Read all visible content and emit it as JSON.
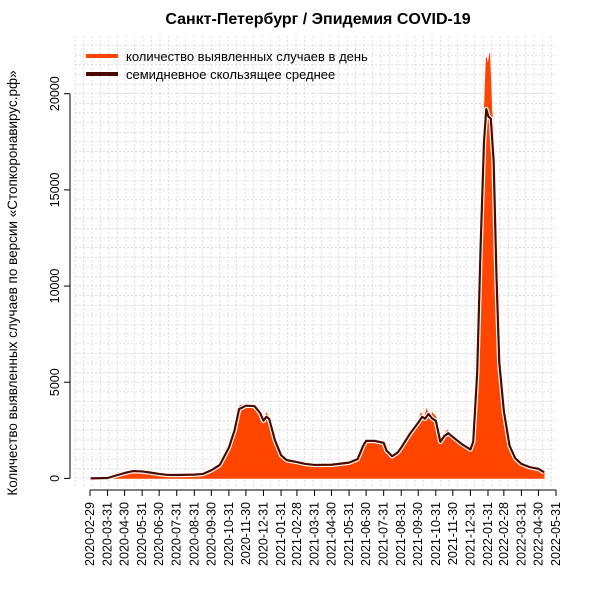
{
  "chart_data": {
    "type": "area",
    "title": "Санкт-Петербург / Эпидемия COVID-19",
    "xlabel": "",
    "ylabel": "Количество выявленных случаев по версии «Стопкоронавирус.рф»",
    "x_range": [
      "2020-02-29",
      "2022-05-31"
    ],
    "ylim": [
      -500,
      23000
    ],
    "y_ticks": [
      0,
      5000,
      10000,
      15000,
      20000
    ],
    "y_tick_labels": [
      "0",
      "5000",
      "10000",
      "15000",
      "20000"
    ],
    "x_ticks": [
      "2020-02-29",
      "2020-03-31",
      "2020-04-30",
      "2020-05-31",
      "2020-06-30",
      "2020-07-31",
      "2020-08-31",
      "2020-09-30",
      "2020-10-31",
      "2020-11-30",
      "2020-12-31",
      "2021-01-31",
      "2021-02-28",
      "2021-03-31",
      "2021-04-30",
      "2021-05-31",
      "2021-06-30",
      "2021-07-31",
      "2021-08-31",
      "2021-09-30",
      "2021-10-31",
      "2021-11-30",
      "2021-12-31",
      "2022-01-31",
      "2022-02-28",
      "2022-03-31",
      "2022-04-30",
      "2022-05-31"
    ],
    "grid": true,
    "legend_position": "top-left",
    "colors": {
      "daily": "#ff4500",
      "average": "#4a0a00",
      "grid": "#c8c8c8"
    },
    "series": [
      {
        "name": "количество выявленных случаев в день",
        "kind": "area",
        "points": [
          [
            "2020-03-01",
            0
          ],
          [
            "2020-03-15",
            5
          ],
          [
            "2020-03-31",
            30
          ],
          [
            "2020-04-10",
            200
          ],
          [
            "2020-04-20",
            300
          ],
          [
            "2020-04-30",
            330
          ],
          [
            "2020-05-10",
            450
          ],
          [
            "2020-05-20",
            420
          ],
          [
            "2020-05-31",
            380
          ],
          [
            "2020-06-10",
            330
          ],
          [
            "2020-06-20",
            300
          ],
          [
            "2020-06-30",
            220
          ],
          [
            "2020-07-10",
            180
          ],
          [
            "2020-07-20",
            170
          ],
          [
            "2020-07-31",
            180
          ],
          [
            "2020-08-15",
            190
          ],
          [
            "2020-08-31",
            200
          ],
          [
            "2020-09-15",
            240
          ],
          [
            "2020-09-30",
            450
          ],
          [
            "2020-10-10",
            650
          ],
          [
            "2020-10-20",
            900
          ],
          [
            "2020-10-31",
            1700
          ],
          [
            "2020-11-10",
            2700
          ],
          [
            "2020-11-15",
            3600
          ],
          [
            "2020-11-20",
            3800
          ],
          [
            "2020-11-30",
            3820
          ],
          [
            "2020-12-10",
            3800
          ],
          [
            "2020-12-20",
            3750
          ],
          [
            "2020-12-25",
            3000
          ],
          [
            "2020-12-31",
            2800
          ],
          [
            "2021-01-05",
            3400
          ],
          [
            "2021-01-10",
            3200
          ],
          [
            "2021-01-15",
            2400
          ],
          [
            "2021-01-25",
            1500
          ],
          [
            "2021-01-31",
            1100
          ],
          [
            "2021-02-10",
            950
          ],
          [
            "2021-02-20",
            900
          ],
          [
            "2021-02-28",
            850
          ],
          [
            "2021-03-15",
            760
          ],
          [
            "2021-03-31",
            700
          ],
          [
            "2021-04-15",
            690
          ],
          [
            "2021-04-30",
            720
          ],
          [
            "2021-05-15",
            760
          ],
          [
            "2021-05-31",
            830
          ],
          [
            "2021-06-10",
            850
          ],
          [
            "2021-06-20",
            1200
          ],
          [
            "2021-06-25",
            1800
          ],
          [
            "2021-06-30",
            2050
          ],
          [
            "2021-07-10",
            2000
          ],
          [
            "2021-07-20",
            1950
          ],
          [
            "2021-07-31",
            1850
          ],
          [
            "2021-08-05",
            1500
          ],
          [
            "2021-08-15",
            1200
          ],
          [
            "2021-08-25",
            1450
          ],
          [
            "2021-08-31",
            1700
          ],
          [
            "2021-09-10",
            2100
          ],
          [
            "2021-09-20",
            2600
          ],
          [
            "2021-09-30",
            3000
          ],
          [
            "2021-10-05",
            3400
          ],
          [
            "2021-10-10",
            3100
          ],
          [
            "2021-10-15",
            3600
          ],
          [
            "2021-10-20",
            3000
          ],
          [
            "2021-10-25",
            3400
          ],
          [
            "2021-10-31",
            3200
          ],
          [
            "2021-11-05",
            2600
          ],
          [
            "2021-11-08",
            1700
          ],
          [
            "2021-11-15",
            2300
          ],
          [
            "2021-11-20",
            2500
          ],
          [
            "2021-11-30",
            2200
          ],
          [
            "2021-12-10",
            2000
          ],
          [
            "2021-12-20",
            1600
          ],
          [
            "2021-12-31",
            1500
          ],
          [
            "2022-01-05",
            2000
          ],
          [
            "2022-01-10",
            4500
          ],
          [
            "2022-01-15",
            9500
          ],
          [
            "2022-01-20",
            15500
          ],
          [
            "2022-01-25",
            19500
          ],
          [
            "2022-01-28",
            21900
          ],
          [
            "2022-01-31",
            21500
          ],
          [
            "2022-02-03",
            22100
          ],
          [
            "2022-02-07",
            19000
          ],
          [
            "2022-02-10",
            18200
          ],
          [
            "2022-02-14",
            12000
          ],
          [
            "2022-02-20",
            6000
          ],
          [
            "2022-02-28",
            3500
          ],
          [
            "2022-03-05",
            2000
          ],
          [
            "2022-03-10",
            1600
          ],
          [
            "2022-03-15",
            1300
          ],
          [
            "2022-03-20",
            1000
          ],
          [
            "2022-03-31",
            700
          ],
          [
            "2022-04-10",
            600
          ],
          [
            "2022-04-20",
            550
          ],
          [
            "2022-04-30",
            500
          ],
          [
            "2022-05-05",
            400
          ],
          [
            "2022-05-10",
            300
          ]
        ]
      },
      {
        "name": "семидневное скользящее среднее",
        "kind": "line",
        "points": [
          [
            "2020-03-01",
            0
          ],
          [
            "2020-03-31",
            20
          ],
          [
            "2020-04-15",
            150
          ],
          [
            "2020-04-30",
            280
          ],
          [
            "2020-05-15",
            380
          ],
          [
            "2020-05-31",
            360
          ],
          [
            "2020-06-15",
            300
          ],
          [
            "2020-06-30",
            230
          ],
          [
            "2020-07-15",
            180
          ],
          [
            "2020-07-31",
            175
          ],
          [
            "2020-08-31",
            195
          ],
          [
            "2020-09-15",
            230
          ],
          [
            "2020-09-30",
            420
          ],
          [
            "2020-10-15",
            700
          ],
          [
            "2020-10-31",
            1600
          ],
          [
            "2020-11-10",
            2500
          ],
          [
            "2020-11-18",
            3600
          ],
          [
            "2020-11-30",
            3780
          ],
          [
            "2020-12-15",
            3760
          ],
          [
            "2020-12-25",
            3400
          ],
          [
            "2020-12-31",
            3000
          ],
          [
            "2021-01-05",
            3200
          ],
          [
            "2021-01-10",
            3100
          ],
          [
            "2021-01-20",
            2000
          ],
          [
            "2021-01-31",
            1200
          ],
          [
            "2021-02-10",
            950
          ],
          [
            "2021-02-28",
            850
          ],
          [
            "2021-03-15",
            750
          ],
          [
            "2021-03-31",
            700
          ],
          [
            "2021-04-30",
            710
          ],
          [
            "2021-05-31",
            820
          ],
          [
            "2021-06-15",
            1000
          ],
          [
            "2021-06-25",
            1700
          ],
          [
            "2021-06-30",
            1950
          ],
          [
            "2021-07-15",
            1950
          ],
          [
            "2021-07-31",
            1850
          ],
          [
            "2021-08-05",
            1450
          ],
          [
            "2021-08-15",
            1150
          ],
          [
            "2021-08-25",
            1350
          ],
          [
            "2021-08-31",
            1600
          ],
          [
            "2021-09-15",
            2300
          ],
          [
            "2021-09-30",
            2900
          ],
          [
            "2021-10-07",
            3200
          ],
          [
            "2021-10-12",
            3100
          ],
          [
            "2021-10-18",
            3350
          ],
          [
            "2021-10-25",
            3100
          ],
          [
            "2021-10-31",
            3000
          ],
          [
            "2021-11-08",
            1900
          ],
          [
            "2021-11-15",
            2200
          ],
          [
            "2021-11-22",
            2350
          ],
          [
            "2021-11-30",
            2150
          ],
          [
            "2021-12-15",
            1800
          ],
          [
            "2021-12-31",
            1500
          ],
          [
            "2022-01-05",
            1900
          ],
          [
            "2022-01-12",
            5500
          ],
          [
            "2022-01-18",
            12000
          ],
          [
            "2022-01-24",
            17500
          ],
          [
            "2022-01-28",
            19200
          ],
          [
            "2022-02-01",
            18800
          ],
          [
            "2022-02-05",
            18700
          ],
          [
            "2022-02-10",
            16500
          ],
          [
            "2022-02-15",
            10500
          ],
          [
            "2022-02-20",
            6000
          ],
          [
            "2022-02-28",
            3500
          ],
          [
            "2022-03-10",
            1700
          ],
          [
            "2022-03-20",
            1050
          ],
          [
            "2022-03-31",
            750
          ],
          [
            "2022-04-15",
            580
          ],
          [
            "2022-04-30",
            500
          ],
          [
            "2022-05-10",
            320
          ]
        ]
      }
    ]
  }
}
